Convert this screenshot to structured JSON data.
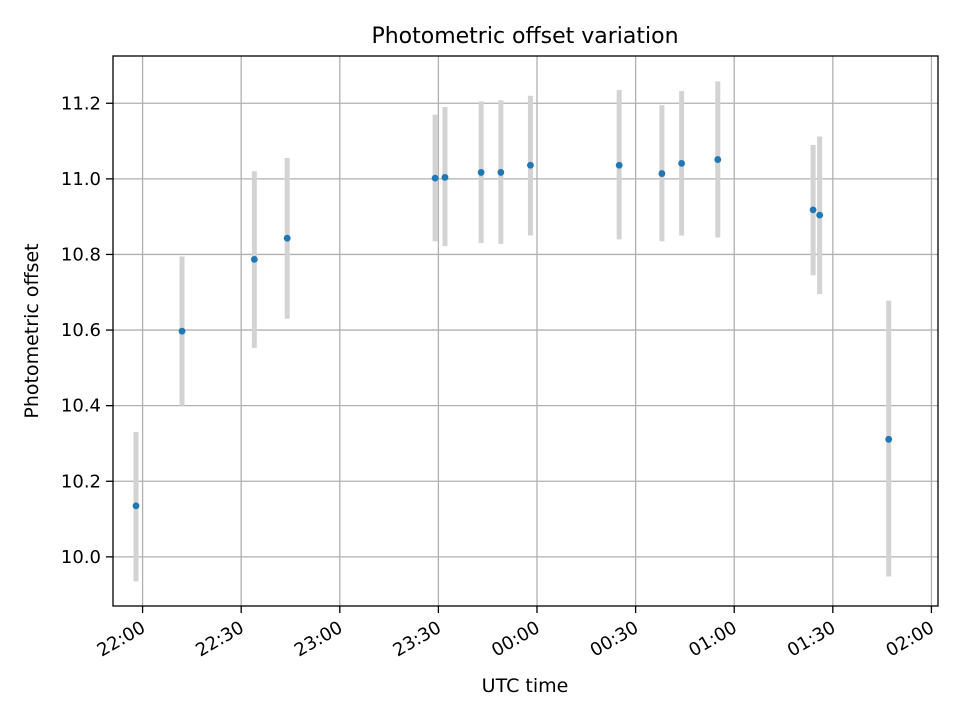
{
  "chart_data": {
    "type": "scatter",
    "title": "Photometric offset variation",
    "xlabel": "UTC time",
    "ylabel": "Photometric offset",
    "grid": true,
    "xlim": [
      "21:51",
      "02:02"
    ],
    "ylim": [
      9.87,
      11.325
    ],
    "x_ticks": [
      "22:00",
      "22:30",
      "23:00",
      "23:30",
      "00:00",
      "00:30",
      "01:00",
      "01:30",
      "02:00"
    ],
    "y_ticks": [
      "10.0",
      "10.2",
      "10.4",
      "10.6",
      "10.8",
      "11.0",
      "11.2"
    ],
    "series": [
      {
        "marker_color": "#1f77b4",
        "error_color": "#d3d3d3",
        "points": [
          {
            "time": "21:58",
            "y": 10.135,
            "low": 9.935,
            "high": 10.33
          },
          {
            "time": "22:12",
            "y": 10.597,
            "low": 10.4,
            "high": 10.795
          },
          {
            "time": "22:34",
            "y": 10.787,
            "low": 10.553,
            "high": 11.02
          },
          {
            "time": "22:44",
            "y": 10.843,
            "low": 10.63,
            "high": 11.055
          },
          {
            "time": "23:29",
            "y": 11.002,
            "low": 10.835,
            "high": 11.17
          },
          {
            "time": "23:32",
            "y": 11.004,
            "low": 10.822,
            "high": 11.19
          },
          {
            "time": "23:43",
            "y": 11.017,
            "low": 10.83,
            "high": 11.205
          },
          {
            "time": "23:49",
            "y": 11.017,
            "low": 10.828,
            "high": 11.208
          },
          {
            "time": "23:58",
            "y": 11.036,
            "low": 10.85,
            "high": 11.22
          },
          {
            "time": "00:25",
            "y": 11.036,
            "low": 10.84,
            "high": 11.235
          },
          {
            "time": "00:38",
            "y": 11.014,
            "low": 10.835,
            "high": 11.195
          },
          {
            "time": "00:44",
            "y": 11.041,
            "low": 10.85,
            "high": 11.232
          },
          {
            "time": "00:55",
            "y": 11.051,
            "low": 10.845,
            "high": 11.258
          },
          {
            "time": "01:24",
            "y": 10.918,
            "low": 10.745,
            "high": 11.09
          },
          {
            "time": "01:26",
            "y": 10.904,
            "low": 10.695,
            "high": 11.112
          },
          {
            "time": "01:47",
            "y": 10.311,
            "low": 9.948,
            "high": 10.678
          }
        ]
      }
    ]
  }
}
